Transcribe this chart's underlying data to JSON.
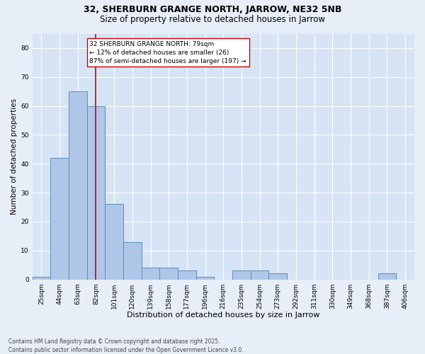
{
  "title1": "32, SHERBURN GRANGE NORTH, JARROW, NE32 5NB",
  "title2": "Size of property relative to detached houses in Jarrow",
  "xlabel": "Distribution of detached houses by size in Jarrow",
  "ylabel": "Number of detached properties",
  "categories": [
    "25sqm",
    "44sqm",
    "63sqm",
    "82sqm",
    "101sqm",
    "120sqm",
    "139sqm",
    "158sqm",
    "177sqm",
    "196sqm",
    "216sqm",
    "235sqm",
    "254sqm",
    "273sqm",
    "292sqm",
    "311sqm",
    "330sqm",
    "349sqm",
    "368sqm",
    "387sqm",
    "406sqm"
  ],
  "values": [
    1,
    42,
    65,
    60,
    26,
    13,
    4,
    4,
    3,
    1,
    0,
    3,
    3,
    2,
    0,
    0,
    0,
    0,
    0,
    2,
    0
  ],
  "bar_color": "#aec6e8",
  "bar_edge_color": "#5b8db8",
  "vline_x_idx": 3,
  "vline_color": "#cc0000",
  "annotation_text": "32 SHERBURN GRANGE NORTH: 79sqm\n← 12% of detached houses are smaller (26)\n87% of semi-detached houses are larger (197) →",
  "annotation_box_color": "#ffffff",
  "annotation_box_edge": "#cc0000",
  "ylim": [
    0,
    85
  ],
  "yticks": [
    0,
    10,
    20,
    30,
    40,
    50,
    60,
    70,
    80
  ],
  "footnote": "Contains HM Land Registry data © Crown copyright and database right 2025.\nContains public sector information licensed under the Open Government Licence v3.0.",
  "bg_color": "#e8eef7",
  "plot_bg_color": "#d6e4f5",
  "grid_color": "#ffffff",
  "title1_fontsize": 9,
  "title2_fontsize": 8.5,
  "xlabel_fontsize": 8,
  "ylabel_fontsize": 7.5,
  "tick_fontsize": 6.5,
  "annot_fontsize": 6.5,
  "footnote_fontsize": 5.5
}
